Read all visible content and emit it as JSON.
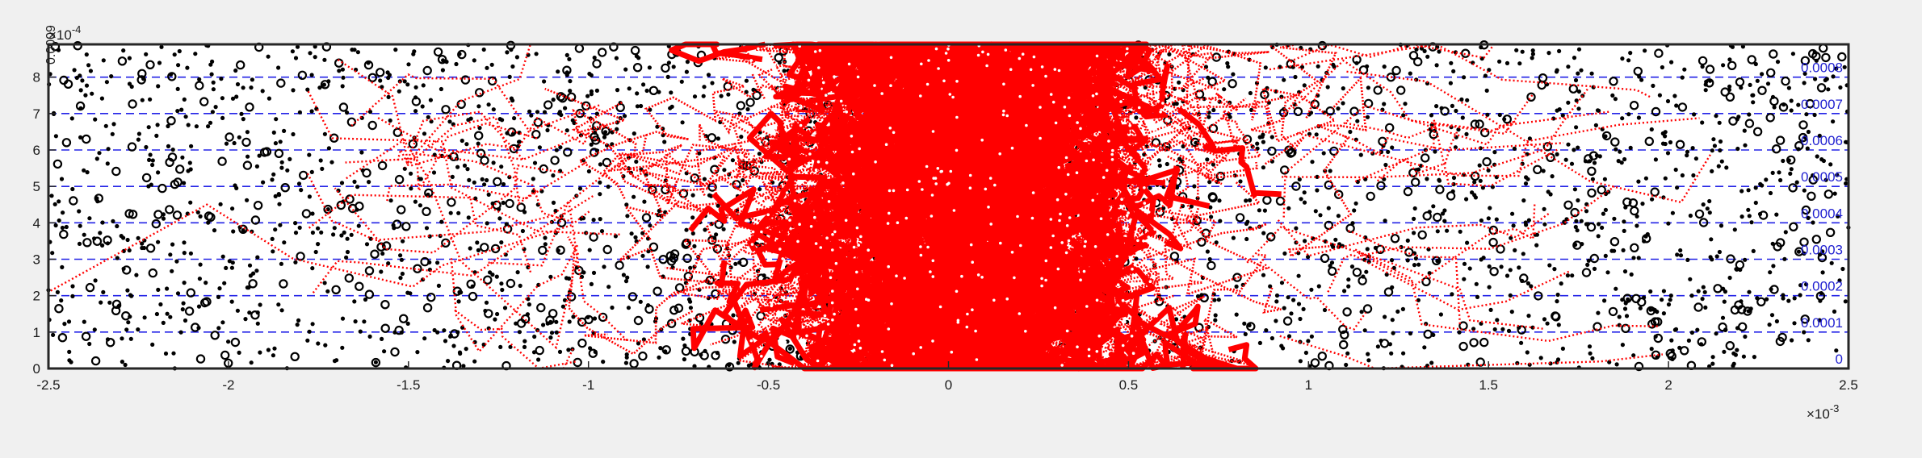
{
  "chart_data": {
    "type": "scatter",
    "title": "",
    "xlabel": "",
    "ylabel": "",
    "x_exponent_label": "×10",
    "x_exponent_power": "-3",
    "y_exponent_label": "×10",
    "y_exponent_power": "-4",
    "xlim": [
      -2.5,
      2.5
    ],
    "ylim": [
      0,
      8.9
    ],
    "x_ticks": [
      -2.5,
      -2,
      -1.5,
      -1,
      -0.5,
      0,
      0.5,
      1,
      1.5,
      2,
      2.5
    ],
    "x_tick_labels": [
      "-2.5",
      "-2",
      "-1.5",
      "-1",
      "-0.5",
      "0",
      "0.5",
      "1",
      "1.5",
      "2",
      "2.5"
    ],
    "y_ticks": [
      0,
      1,
      2,
      3,
      4,
      5,
      6,
      7,
      8
    ],
    "y_tick_labels": [
      "0",
      "1",
      "2",
      "3",
      "4",
      "5",
      "6",
      "7",
      "8"
    ],
    "grid": false,
    "legend": "none",
    "contour_levels": [
      {
        "y": 0,
        "label": "0"
      },
      {
        "y": 1,
        "label": "0.0001"
      },
      {
        "y": 2,
        "label": "0.0002"
      },
      {
        "y": 3,
        "label": "0.0003"
      },
      {
        "y": 4,
        "label": "0.0004"
      },
      {
        "y": 5,
        "label": "0.0005"
      },
      {
        "y": 6,
        "label": "0.0006"
      },
      {
        "y": 7,
        "label": "0.0007"
      },
      {
        "y": 8,
        "label": "0.0008"
      }
    ],
    "top_left_label": "0.0009",
    "series": [
      {
        "kind": "particles-small",
        "color": "#000000",
        "approx_count": 2200,
        "distribution": "uniform over full axes"
      },
      {
        "kind": "particles-large-open",
        "color": "#000000",
        "approx_count": 650,
        "distribution": "uniform over full axes"
      },
      {
        "kind": "trajectories",
        "color": "#ff0000",
        "density_center_x": 0.1,
        "dense_core_x": [
          -0.6,
          0.6
        ],
        "extent_x": [
          -2.5,
          2.2
        ]
      }
    ]
  },
  "colors": {
    "background": "#f0f0f0",
    "plot_background": "#ffffff",
    "axes": "#262626",
    "particles": "#000000",
    "trajectories": "#ff0000",
    "contours": "#2323e6"
  }
}
